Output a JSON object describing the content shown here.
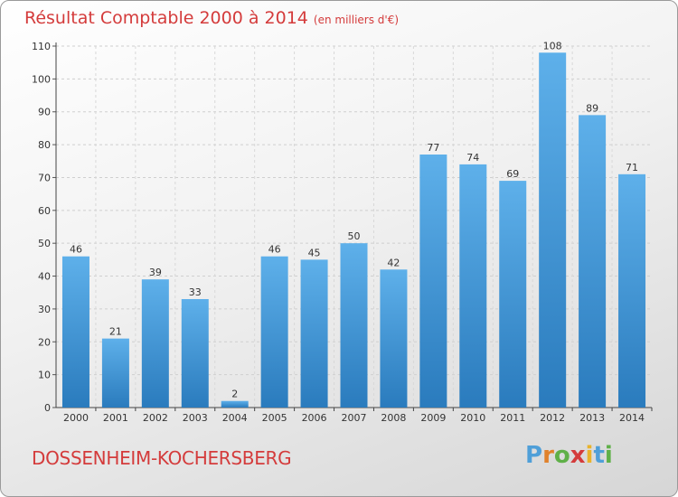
{
  "header": {
    "title": "Résultat Comptable 2000 à 2014",
    "unit": "(en milliers d'€)"
  },
  "footer": {
    "commune": "DOSSENHEIM-KOCHERSBERG",
    "logo_letters": [
      "P",
      "r",
      "o",
      "x",
      "i",
      "t",
      "i"
    ],
    "logo_colors": [
      "#4f9fd8",
      "#e0822c",
      "#5fb048",
      "#d43b3b",
      "#e9b32b",
      "#4f9fd8",
      "#5fb048"
    ]
  },
  "colors": {
    "bar_top": "#5eb0ea",
    "bar_bottom": "#2a7bbd",
    "accent": "#d43b3b"
  },
  "chart_data": {
    "type": "bar",
    "title": "Résultat Comptable 2000 à 2014",
    "subtitle": "(en milliers d'€)",
    "categories": [
      "2000",
      "2001",
      "2002",
      "2003",
      "2004",
      "2005",
      "2006",
      "2007",
      "2008",
      "2009",
      "2010",
      "2011",
      "2012",
      "2013",
      "2014"
    ],
    "values": [
      46,
      21,
      39,
      33,
      2,
      46,
      45,
      50,
      42,
      77,
      74,
      69,
      108,
      89,
      71
    ],
    "ylim": [
      0,
      110
    ],
    "yticks": [
      0,
      10,
      20,
      30,
      40,
      50,
      60,
      70,
      80,
      90,
      100,
      110
    ],
    "grid": true,
    "legend": "none"
  }
}
